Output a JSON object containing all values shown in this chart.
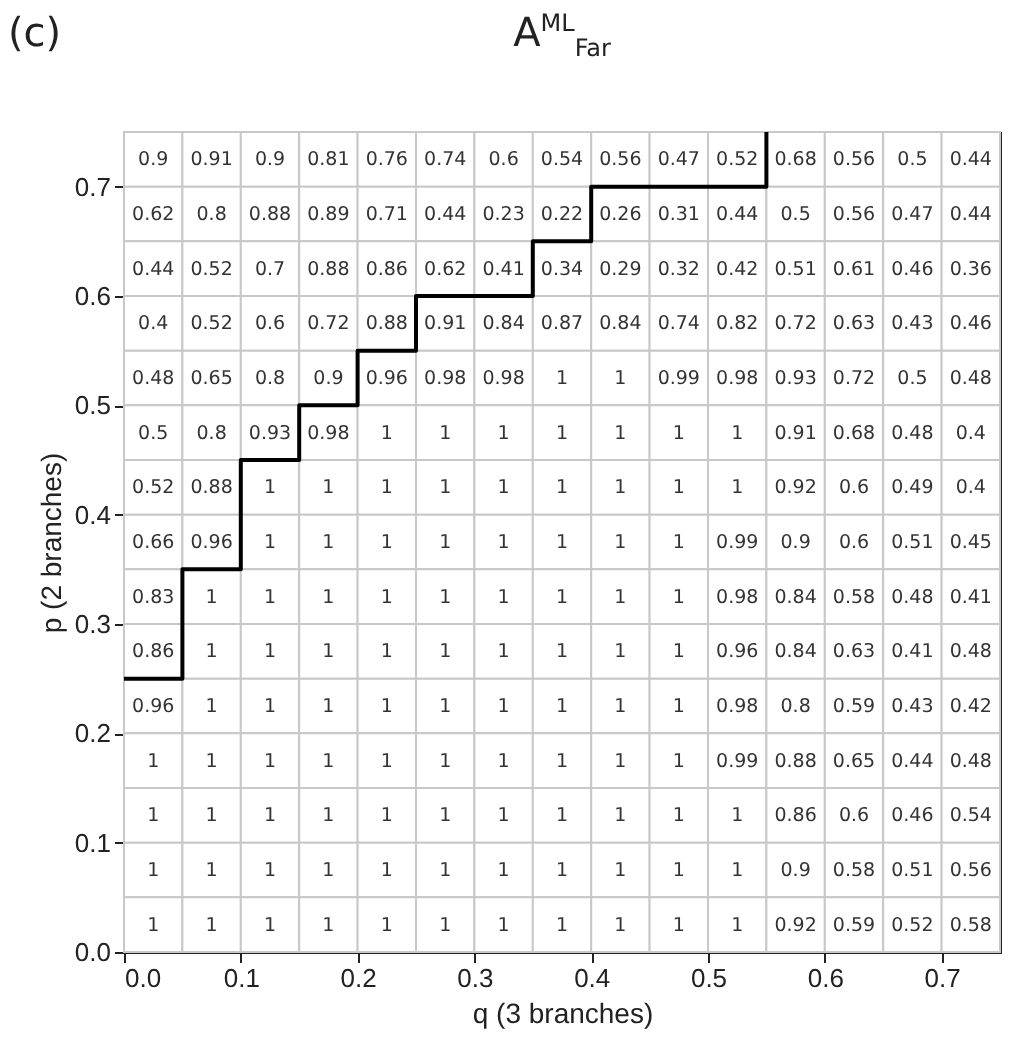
{
  "chart_data": {
    "type": "heatmap",
    "title": "A$^{ML}$$_{Far}$",
    "annotations": [
      "(c)"
    ],
    "xlabel": "q (3 branches)",
    "ylabel": "p (2 branches)",
    "xlim": [
      0,
      0.75
    ],
    "xticks": [
      {
        "value": 0,
        "label": "0.0"
      },
      0.1,
      0.2,
      0.3,
      0.4,
      0.5,
      0.6,
      0.7
    ],
    "ylim": [
      0,
      0.75
    ],
    "yticks": [
      {
        "value": 0,
        "label": "0.0"
      },
      0.1,
      0.2,
      0.3,
      0.4,
      0.5,
      0.6,
      0.7
    ],
    "data_labels": true,
    "cells": [
      [
        0.9,
        0.91,
        0.9,
        0.81,
        0.76,
        0.74,
        0.6,
        0.54,
        0.56,
        0.47,
        0.52,
        0.68,
        0.56,
        0.5,
        0.44
      ],
      [
        0.62,
        0.8,
        0.88,
        0.89,
        0.71,
        0.44,
        0.23,
        0.22,
        0.26,
        0.31,
        0.44,
        0.5,
        0.56,
        0.47,
        0.44
      ],
      [
        0.44,
        0.52,
        0.7,
        0.88,
        0.86,
        0.62,
        0.41,
        0.34,
        0.29,
        0.32,
        0.42,
        0.51,
        0.61,
        0.46,
        0.36
      ],
      [
        0.4,
        0.52,
        0.6,
        0.72,
        0.88,
        0.91,
        0.84,
        0.87,
        0.84,
        0.74,
        0.82,
        0.72,
        0.63,
        0.43,
        0.46
      ],
      [
        0.48,
        0.65,
        0.8,
        0.9,
        0.96,
        0.98,
        0.98,
        1,
        1,
        0.99,
        0.98,
        0.93,
        0.72,
        0.5,
        0.48
      ],
      [
        0.5,
        0.8,
        0.93,
        0.98,
        1,
        1,
        1,
        1,
        1,
        1,
        1,
        0.91,
        0.68,
        0.48,
        0.4
      ],
      [
        0.52,
        0.88,
        1,
        1,
        1,
        1,
        1,
        1,
        1,
        1,
        1,
        0.92,
        0.6,
        0.49,
        0.4
      ],
      [
        0.66,
        0.96,
        1,
        1,
        1,
        1,
        1,
        1,
        1,
        1,
        0.99,
        0.9,
        0.6,
        0.51,
        0.45
      ],
      [
        0.83,
        1,
        1,
        1,
        1,
        1,
        1,
        1,
        1,
        1,
        0.98,
        0.84,
        0.58,
        0.48,
        0.41
      ],
      [
        0.86,
        1,
        1,
        1,
        1,
        1,
        1,
        1,
        1,
        1,
        0.96,
        0.84,
        0.63,
        0.41,
        0.48
      ],
      [
        0.96,
        1,
        1,
        1,
        1,
        1,
        1,
        1,
        1,
        1,
        0.98,
        0.8,
        0.59,
        0.43,
        0.42
      ],
      [
        1,
        1,
        1,
        1,
        1,
        1,
        1,
        1,
        1,
        1,
        0.99,
        0.88,
        0.65,
        0.44,
        0.48
      ],
      [
        1,
        1,
        1,
        1,
        1,
        1,
        1,
        1,
        1,
        1,
        1,
        0.86,
        0.6,
        0.46,
        0.54
      ],
      [
        1,
        1,
        1,
        1,
        1,
        1,
        1,
        1,
        1,
        1,
        1,
        0.9,
        0.58,
        0.51,
        0.56
      ],
      [
        1,
        1,
        1,
        1,
        1,
        1,
        1,
        1,
        1,
        1,
        1,
        0.92,
        0.59,
        0.52,
        0.58
      ]
    ],
    "series": [
      {
        "type": "line",
        "color": "#000000",
        "x": [
          0,
          0.05,
          0.05,
          0.1,
          0.1,
          0.15,
          0.15,
          0.2,
          0.2,
          0.25,
          0.25,
          0.35,
          0.35,
          0.4,
          0.4,
          0.55,
          0.55
        ],
        "values": [
          0.25,
          0.25,
          0.35,
          0.35,
          0.45,
          0.45,
          0.5,
          0.5,
          0.55,
          0.55,
          0.6,
          0.6,
          0.65,
          0.65,
          0.7,
          0.7,
          0.75
        ],
        "value_labels": [
          null,
          null,
          null,
          null,
          null,
          null,
          null,
          null,
          null,
          null,
          null,
          null,
          null,
          null,
          null,
          null,
          null
        ]
      }
    ]
  }
}
